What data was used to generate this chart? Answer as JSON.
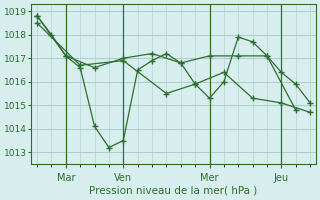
{
  "bg_color": "#d8eeee",
  "grid_color": "#aacccc",
  "line_color": "#2d6e2d",
  "tick_color": "#2d6e2d",
  "label_color": "#2d6e2d",
  "xlabel": "Pression niveau de la mer( hPa )",
  "ylim": [
    1012.5,
    1019.3
  ],
  "yticks": [
    1013,
    1014,
    1015,
    1016,
    1017,
    1018,
    1019
  ],
  "day_labels": [
    "Mar",
    "Ven",
    "Mer",
    "Jeu"
  ],
  "day_positions": [
    1.0,
    3.0,
    6.0,
    8.5
  ],
  "series1_x": [
    0.0,
    0.5,
    1.0,
    1.5,
    2.0,
    2.5,
    3.0,
    3.5,
    4.0,
    4.5,
    5.0,
    5.5,
    6.0,
    6.5,
    7.0,
    7.5,
    8.0,
    8.5,
    9.0,
    9.5
  ],
  "series1_y": [
    1018.8,
    1018.0,
    1017.1,
    1016.6,
    1014.1,
    1013.2,
    1013.5,
    1016.5,
    1016.9,
    1017.2,
    1016.8,
    1015.9,
    1015.3,
    1016.0,
    1017.9,
    1017.7,
    1017.1,
    1016.4,
    1015.9,
    1015.1
  ],
  "series2_x": [
    0.0,
    1.0,
    2.0,
    3.0,
    4.0,
    5.0,
    6.0,
    7.0,
    8.0,
    9.0
  ],
  "series2_y": [
    1018.8,
    1017.1,
    1016.6,
    1017.0,
    1017.2,
    1016.8,
    1017.1,
    1017.1,
    1017.1,
    1014.8
  ],
  "series3_x": [
    0.0,
    1.5,
    3.0,
    4.5,
    5.5,
    6.5,
    7.5,
    8.5,
    9.5
  ],
  "series3_y": [
    1018.5,
    1016.7,
    1016.9,
    1015.5,
    1015.9,
    1016.4,
    1015.3,
    1015.1,
    1014.7
  ],
  "xmin": -0.2,
  "xmax": 9.7
}
